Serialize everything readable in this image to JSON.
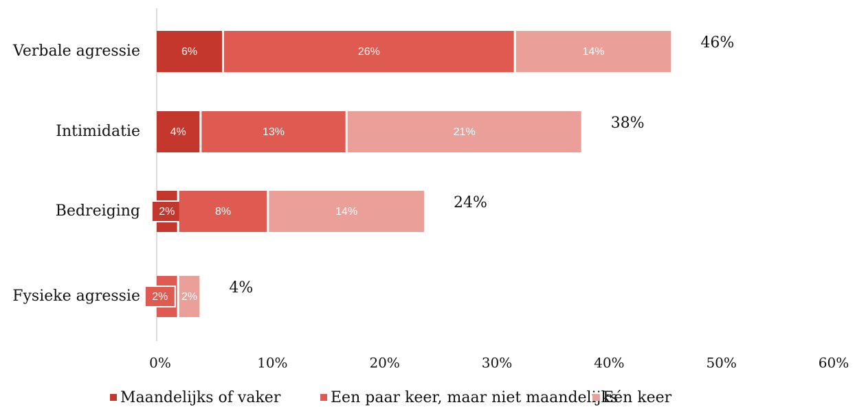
{
  "chart_data": {
    "type": "stacked-barh",
    "categories": [
      "Verbale agressie",
      "Intimidatie",
      "Bedreiging",
      "Fysieke agressie"
    ],
    "series": [
      {
        "name": "Maandelijks of vaker",
        "color": "#c3372d",
        "values": [
          6,
          4,
          2,
          0
        ],
        "value_labels": [
          "6%",
          "4%",
          "2%",
          null
        ]
      },
      {
        "name": "Een paar keer, maar niet maandelijks",
        "color": "#df5b51",
        "values": [
          26,
          13,
          8,
          2
        ],
        "value_labels": [
          "26%",
          "13%",
          "8%",
          "2%"
        ]
      },
      {
        "name": "Eén keer",
        "color": "#eb9f99",
        "values": [
          14,
          21,
          14,
          2
        ],
        "value_labels": [
          "14%",
          "21%",
          "14%",
          "2%"
        ]
      }
    ],
    "totals": {
      "values": [
        46,
        38,
        24,
        4
      ],
      "labels": [
        "46%",
        "38%",
        "24%",
        "4%"
      ]
    },
    "xlim": [
      0,
      60
    ],
    "xticks": [
      {
        "value": 0,
        "label": "0%"
      },
      {
        "value": 10,
        "label": "10%"
      },
      {
        "value": 20,
        "label": "20%"
      },
      {
        "value": 30,
        "label": "30%"
      },
      {
        "value": 40,
        "label": "40%"
      },
      {
        "value": 50,
        "label": "50%"
      },
      {
        "value": 60,
        "label": "60%"
      }
    ],
    "legend": "bottom"
  }
}
